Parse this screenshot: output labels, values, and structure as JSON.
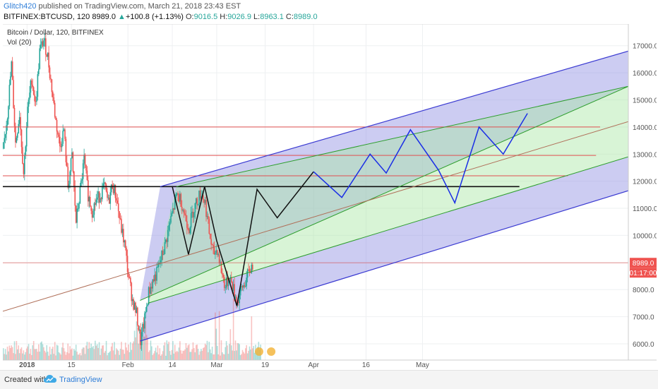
{
  "header": {
    "author": "Glitch420",
    "published": " published on TradingView.com, March 21, 2018 23:43 EST",
    "symbol": "BITFINEX:BTCUSD, 120",
    "price": "8989.0",
    "change": "+100.8 (+1.13%)",
    "o_label": "O:",
    "o_value": "9016.5",
    "h_label": "H:",
    "h_value": "9026.9",
    "l_label": "L:",
    "l_value": "8963.1",
    "c_label": "C:",
    "c_value": "8989.0"
  },
  "legend": {
    "title": "Bitcoin / Dollar, 120, BITFINEX",
    "indicator": "Vol (20)"
  },
  "footer": {
    "created": "Created with",
    "brand": "TradingView"
  },
  "colors": {
    "up": "#26a69a",
    "down": "#ef5350",
    "blue_band": "#8d8fe3",
    "green_band": "#a8e6a3",
    "channel_blue": "#3c3cd2",
    "channel_green": "#2e9e2e",
    "red_line": "#e05050",
    "mid_line": "#b0705a",
    "projection_blue": "#1a2ee6",
    "black": "#111111"
  },
  "chart_data": {
    "type": "candlestick",
    "title": "Bitcoin / Dollar, 120, BITFINEX",
    "x_ticks": [
      "2018",
      "15",
      "Feb",
      "14",
      "Mar",
      "19",
      "Apr",
      "16",
      "May"
    ],
    "y_ticks": [
      6000,
      7000,
      8000,
      9000,
      10000,
      11000,
      12000,
      13000,
      14000,
      15000,
      16000,
      17000
    ],
    "ylim": [
      5400,
      17800
    ],
    "last_price": 8989.0,
    "last_price_label": "8989.0",
    "countdown_label": "01:17:00",
    "price_path": [
      [
        0,
        13200
      ],
      [
        1,
        14500
      ],
      [
        2,
        16300
      ],
      [
        3,
        13400
      ],
      [
        4,
        14500
      ],
      [
        5,
        12300
      ],
      [
        6,
        14600
      ],
      [
        7,
        15800
      ],
      [
        8,
        14800
      ],
      [
        9,
        16800
      ],
      [
        10,
        17200
      ],
      [
        11,
        16600
      ],
      [
        12,
        15400
      ],
      [
        13,
        14200
      ],
      [
        14,
        13300
      ],
      [
        15,
        13900
      ],
      [
        16,
        11800
      ],
      [
        17,
        12900
      ],
      [
        18,
        10500
      ],
      [
        19,
        11600
      ],
      [
        20,
        12800
      ],
      [
        21,
        11500
      ],
      [
        22,
        10900
      ],
      [
        23,
        11300
      ],
      [
        24,
        11500
      ],
      [
        25,
        11800
      ],
      [
        26,
        11200
      ],
      [
        27,
        11900
      ],
      [
        28,
        11400
      ],
      [
        29,
        10400
      ],
      [
        30,
        9700
      ],
      [
        31,
        8500
      ],
      [
        32,
        7600
      ],
      [
        33,
        7100
      ],
      [
        34,
        6100
      ],
      [
        35,
        6900
      ],
      [
        36,
        7900
      ],
      [
        37,
        8300
      ],
      [
        38,
        8600
      ],
      [
        39,
        9100
      ],
      [
        40,
        9600
      ],
      [
        41,
        10300
      ],
      [
        42,
        10900
      ],
      [
        43,
        11500
      ],
      [
        44,
        11300
      ],
      [
        45,
        10700
      ],
      [
        46,
        10300
      ],
      [
        47,
        10900
      ],
      [
        48,
        11300
      ],
      [
        49,
        11600
      ],
      [
        50,
        11200
      ],
      [
        51,
        10100
      ],
      [
        52,
        9300
      ],
      [
        53,
        9500
      ],
      [
        54,
        8700
      ],
      [
        55,
        8100
      ],
      [
        56,
        8500
      ],
      [
        57,
        8000
      ],
      [
        58,
        7500
      ],
      [
        59,
        8000
      ],
      [
        60,
        8300
      ],
      [
        61,
        8700
      ],
      [
        62,
        8989
      ]
    ],
    "levels": {
      "black_horizontal": 11800,
      "red_horizontals": [
        14000,
        12950,
        12200,
        8989
      ]
    },
    "channel": {
      "blue_upper": [
        [
          39,
          11800
        ],
        [
          155,
          16800
        ]
      ],
      "blue_lower": [
        [
          34,
          6100
        ],
        [
          155,
          11650
        ]
      ],
      "green_upper": [
        [
          43,
          11800
        ],
        [
          155,
          15500
        ]
      ],
      "green_lower": [
        [
          36,
          7500
        ],
        [
          155,
          12900
        ]
      ],
      "median": [
        [
          0,
          7200
        ],
        [
          155,
          14200
        ]
      ]
    },
    "projection_black": [
      [
        42,
        11800
      ],
      [
        46,
        9300
      ],
      [
        50,
        11800
      ],
      [
        53,
        9800
      ],
      [
        58,
        7400
      ],
      [
        63,
        11700
      ],
      [
        68,
        10650
      ],
      [
        77,
        12350
      ]
    ],
    "projection_blue": [
      [
        77,
        12350
      ],
      [
        84,
        11400
      ],
      [
        91,
        13000
      ],
      [
        95,
        12300
      ],
      [
        101,
        13900
      ],
      [
        108,
        12400
      ],
      [
        112,
        11200
      ],
      [
        118,
        14000
      ],
      [
        124,
        13000
      ],
      [
        130,
        14500
      ]
    ]
  }
}
